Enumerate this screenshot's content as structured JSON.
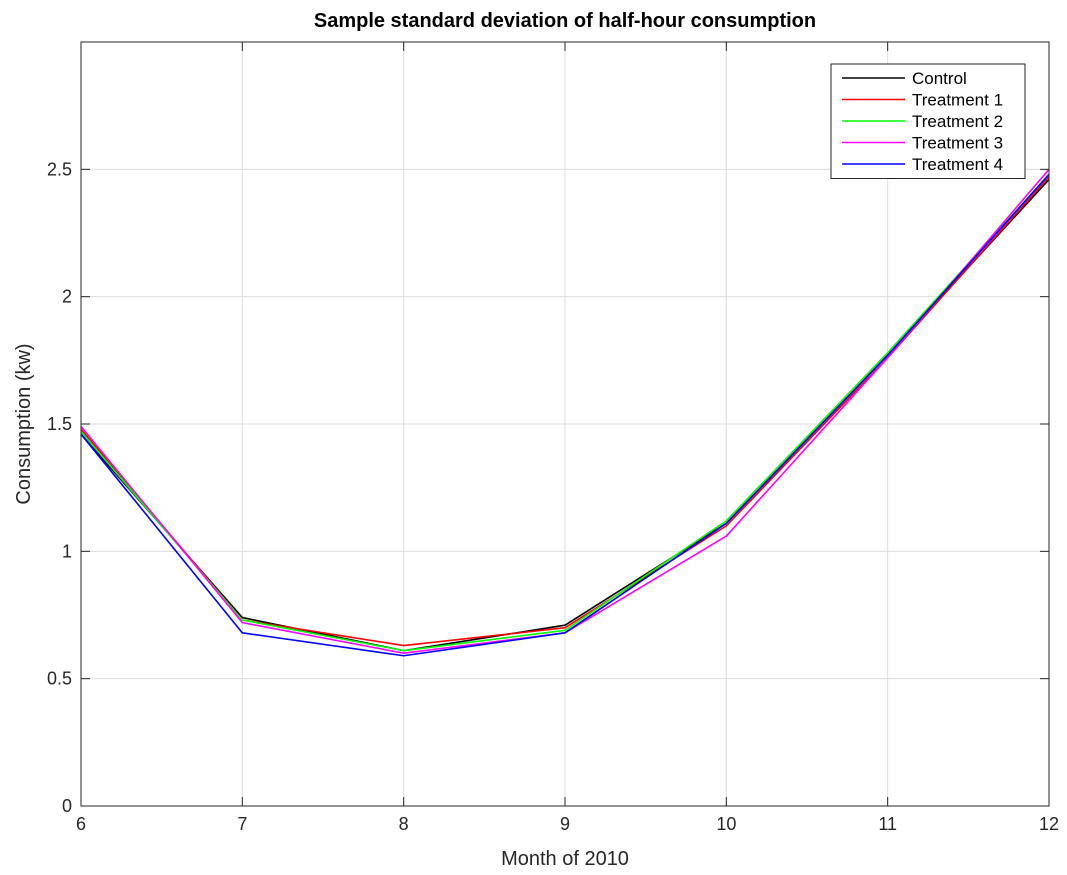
{
  "chart_data": {
    "type": "line",
    "title": "Sample standard deviation of half-hour consumption",
    "xlabel": "Month of 2010",
    "ylabel": "Consumption (kw)",
    "xlim": [
      6,
      12
    ],
    "ylim": [
      0,
      3
    ],
    "x": [
      6,
      7,
      8,
      9,
      10,
      11,
      12
    ],
    "xticks": [
      "6",
      "7",
      "8",
      "9",
      "10",
      "11",
      "12"
    ],
    "yticks": [
      0,
      0.5,
      1,
      1.5,
      2,
      2.5
    ],
    "ytick_labels": [
      "0",
      "0.5",
      "1",
      "1.5",
      "2",
      "2.5"
    ],
    "grid": true,
    "legend_position": "top-right",
    "series": [
      {
        "name": "Control",
        "color": "#000000",
        "values": [
          1.46,
          0.74,
          0.61,
          0.71,
          1.11,
          1.77,
          2.46
        ]
      },
      {
        "name": "Treatment 1",
        "color": "#ff0000",
        "values": [
          1.48,
          0.73,
          0.63,
          0.7,
          1.1,
          1.76,
          2.47
        ]
      },
      {
        "name": "Treatment 2",
        "color": "#00ff00",
        "values": [
          1.47,
          0.73,
          0.61,
          0.69,
          1.12,
          1.78,
          2.48
        ]
      },
      {
        "name": "Treatment 3",
        "color": "#ff00ff",
        "values": [
          1.49,
          0.72,
          0.6,
          0.68,
          1.06,
          1.76,
          2.5
        ]
      },
      {
        "name": "Treatment 4",
        "color": "#0000ff",
        "values": [
          1.46,
          0.68,
          0.59,
          0.68,
          1.11,
          1.77,
          2.48
        ]
      }
    ]
  }
}
